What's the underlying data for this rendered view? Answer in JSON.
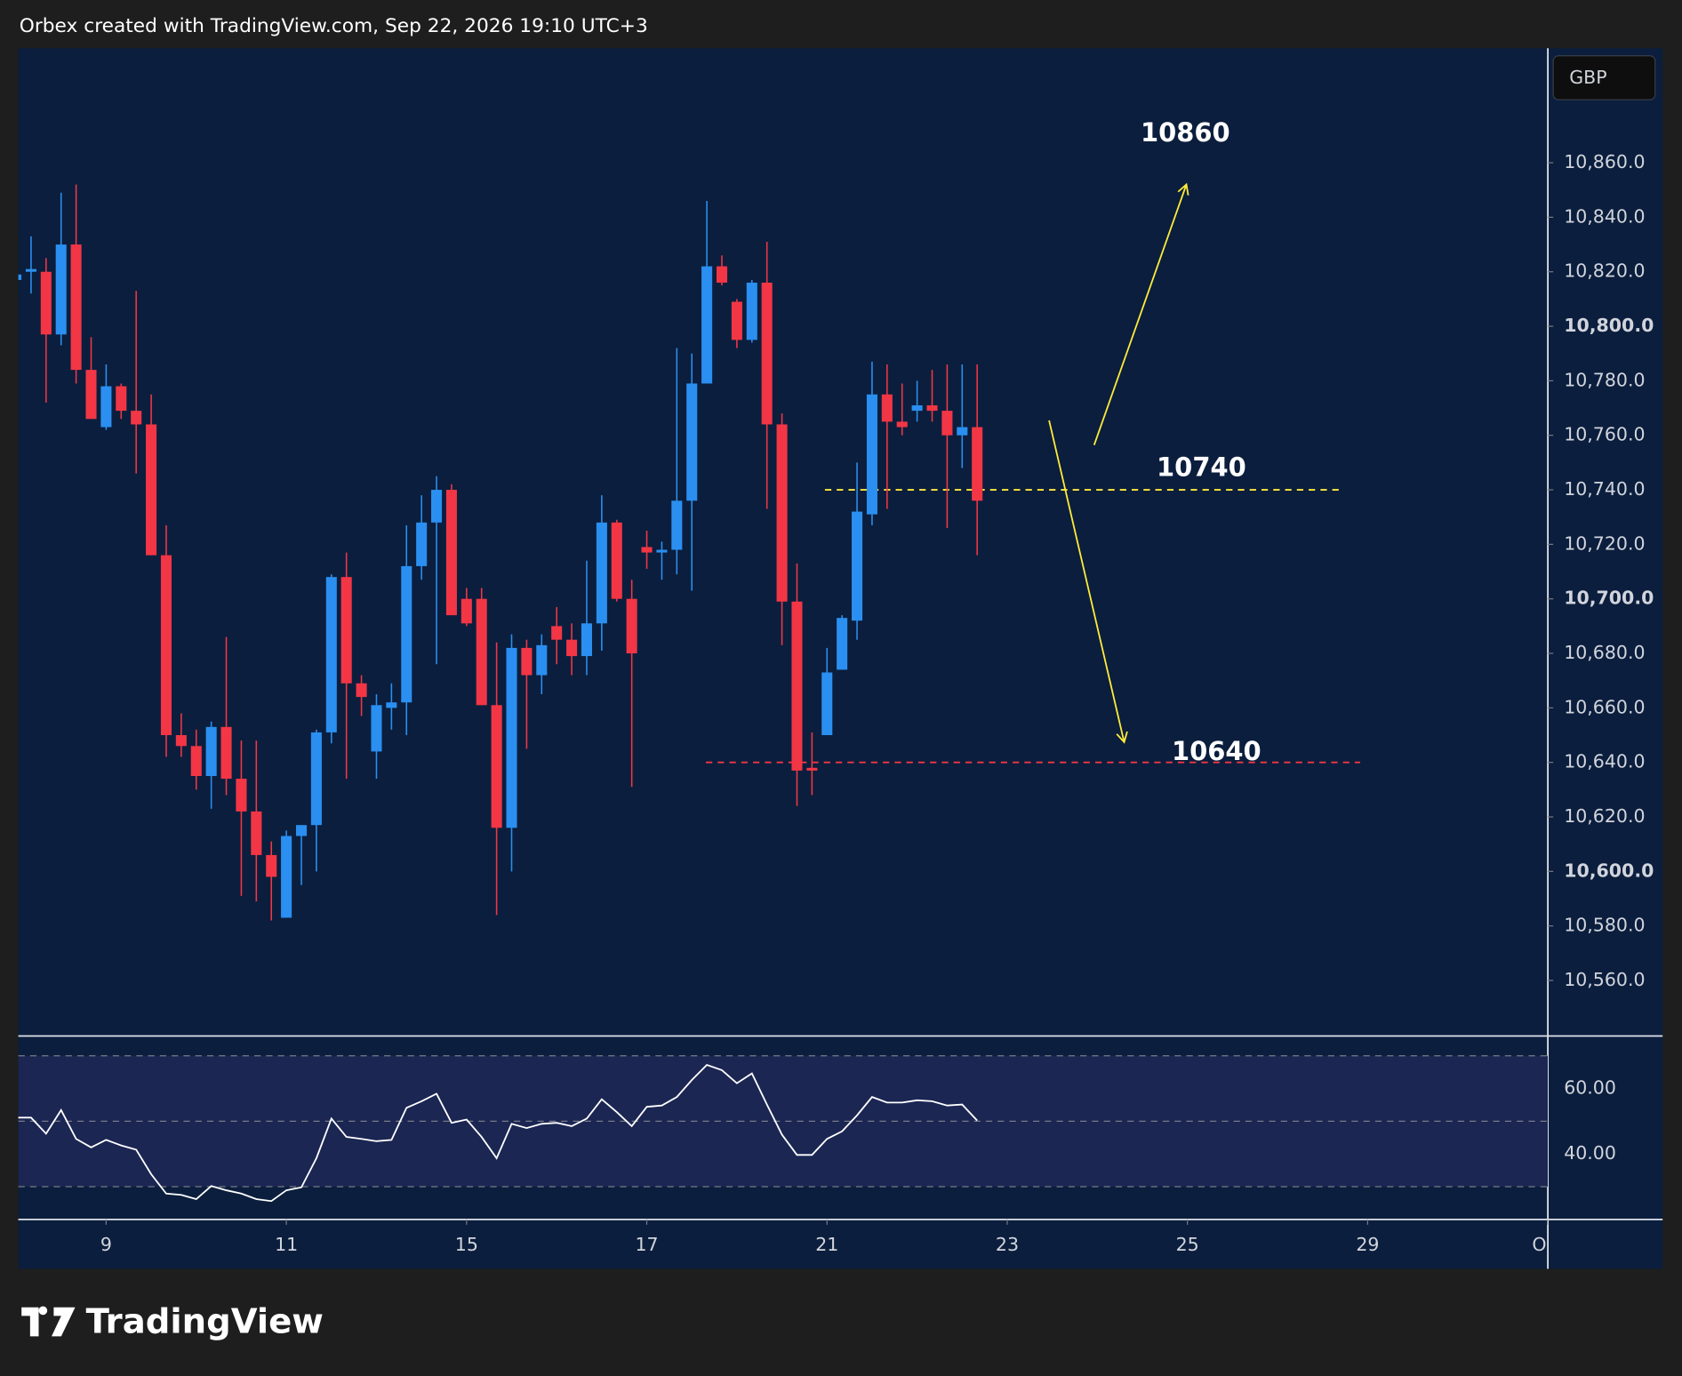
{
  "chart_data": {
    "type": "candlestick",
    "title": "Orbex created with TradingView.com, Sep 22, 2026 19:10 UTC+3",
    "currency": "GBP",
    "logo": "TradingView",
    "up_color": "#2a8ff0",
    "down_color": "#f23645",
    "open": [
      10817,
      10820,
      10820,
      10797,
      10830,
      10784,
      10763,
      10778,
      10769,
      10764,
      10716,
      10650,
      10646,
      10635,
      10653,
      10634,
      10622,
      10606,
      10583,
      10613,
      10617,
      10651,
      10708,
      10669,
      10644,
      10660,
      10662,
      10712,
      10728,
      10740,
      10700,
      10700,
      10661,
      10616,
      10682,
      10672,
      10690,
      10685,
      10679,
      10691,
      10728,
      10700,
      10719,
      10717,
      10718,
      10736,
      10779,
      10822,
      10809,
      10795,
      10816,
      10764,
      10699,
      10638,
      10650,
      10674,
      10692,
      10731,
      10775,
      10765,
      10769,
      10771,
      10769,
      10760,
      10763
    ],
    "high": [
      10820,
      10833,
      10825,
      10849,
      10852,
      10796,
      10786,
      10779,
      10813,
      10775,
      10727,
      10658,
      10652,
      10655,
      10686,
      10648,
      10648,
      10611,
      10615,
      10617,
      10652,
      10709,
      10717,
      10672,
      10665,
      10669,
      10727,
      10738,
      10745,
      10742,
      10704,
      10704,
      10684,
      10687,
      10685,
      10687,
      10697,
      10691,
      10714,
      10738,
      10729,
      10707,
      10725,
      10721,
      10792,
      10790,
      10846,
      10826,
      10810,
      10817,
      10831,
      10768,
      10713,
      10651,
      10682,
      10694,
      10750,
      10787,
      10786,
      10779,
      10780,
      10784,
      10786,
      10786,
      10786
    ],
    "low": [
      10816,
      10812,
      10772,
      10793,
      10779,
      10766,
      10762,
      10766,
      10746,
      10716,
      10642,
      10642,
      10630,
      10623,
      10628,
      10591,
      10589,
      10582,
      10583,
      10595,
      10600,
      10647,
      10634,
      10657,
      10634,
      10652,
      10650,
      10707,
      10676,
      10694,
      10690,
      10661,
      10584,
      10600,
      10645,
      10665,
      10676,
      10672,
      10672,
      10681,
      10699,
      10631,
      10711,
      10707,
      10709,
      10703,
      10779,
      10815,
      10792,
      10794,
      10733,
      10683,
      10624,
      10628,
      10650,
      10674,
      10685,
      10727,
      10733,
      10760,
      10765,
      10765,
      10726,
      10748,
      10716
    ],
    "close": [
      10819,
      10821,
      10797,
      10830,
      10784,
      10766,
      10778,
      10769,
      10764,
      10716,
      10650,
      10646,
      10635,
      10653,
      10634,
      10622,
      10606,
      10598,
      10613,
      10617,
      10651,
      10708,
      10669,
      10664,
      10661,
      10662,
      10712,
      10728,
      10740,
      10694,
      10691,
      10661,
      10616,
      10682,
      10672,
      10683,
      10685,
      10679,
      10691,
      10728,
      10700,
      10680,
      10717,
      10718,
      10736,
      10779,
      10822,
      10816,
      10795,
      10816,
      10764,
      10699,
      10637,
      10637,
      10673,
      10693,
      10732,
      10775,
      10765,
      10763,
      10771,
      10769,
      10760,
      10763,
      10736
    ],
    "xlim": [
      0.15,
      102
    ],
    "xticks": [
      {
        "value": 6,
        "label": "9"
      },
      {
        "value": 18,
        "label": "11"
      },
      {
        "value": 30,
        "label": "15"
      },
      {
        "value": 42,
        "label": "17"
      },
      {
        "value": 54,
        "label": "21"
      },
      {
        "value": 66,
        "label": "23"
      },
      {
        "value": 78,
        "label": "25"
      },
      {
        "value": 90,
        "label": "29"
      },
      {
        "value": 102,
        "label": "Oct"
      }
    ],
    "ylim": [
      10540,
      10902
    ],
    "yticks": [
      {
        "value": 10560,
        "label": "10,560.0"
      },
      {
        "value": 10580,
        "label": "10,580.0"
      },
      {
        "value": 10600,
        "label": "10,600.0"
      },
      {
        "value": 10620,
        "label": "10,620.0"
      },
      {
        "value": 10640,
        "label": "10,640.0"
      },
      {
        "value": 10660,
        "label": "10,660.0"
      },
      {
        "value": 10680,
        "label": "10,680.0"
      },
      {
        "value": 10700,
        "label": "10,700.0"
      },
      {
        "value": 10720,
        "label": "10,720.0"
      },
      {
        "value": 10740,
        "label": "10,740.0"
      },
      {
        "value": 10760,
        "label": "10,760.0"
      },
      {
        "value": 10780,
        "label": "10,780.0"
      },
      {
        "value": 10800,
        "label": "10,800.0"
      },
      {
        "value": 10820,
        "label": "10,820.0"
      },
      {
        "value": 10840,
        "label": "10,840.0"
      },
      {
        "value": 10860,
        "label": "10,860.0"
      }
    ],
    "annotations": [
      {
        "value": 10860,
        "color": "#ffffff"
      },
      {
        "value": 10740,
        "color": "#ffeb3b"
      },
      {
        "value": 10640,
        "color": "#f23645"
      }
    ],
    "rsi": {
      "color": "#ffffff",
      "values": [
        51.1,
        51.1,
        46.2,
        53.4,
        44.6,
        42,
        44.3,
        42.6,
        41.3,
        33.8,
        27.9,
        27.5,
        26.2,
        30.2,
        28.9,
        27.9,
        26.2,
        25.6,
        28.9,
        29.8,
        38.7,
        50.8,
        45.2,
        44.6,
        43.9,
        44.3,
        54.1,
        56.1,
        58.4,
        49.5,
        50.5,
        45.2,
        38.7,
        49.2,
        47.9,
        49.2,
        49.5,
        48.5,
        50.8,
        56.7,
        52.8,
        48.5,
        54.4,
        54.8,
        57.4,
        62.6,
        67.2,
        65.6,
        61.6,
        64.6,
        55.1,
        45.9,
        39.7,
        39.7,
        44.6,
        46.9,
        51.8,
        57.4,
        55.7,
        55.7,
        56.4,
        56.1,
        54.8,
        55.1,
        50.2
      ],
      "y2lim": [
        20,
        75.7
      ],
      "y2ticks": [
        {
          "value": 60,
          "label": "60.00"
        },
        {
          "value": 40,
          "label": "40.00"
        }
      ],
      "levels": [
        70,
        50,
        30
      ]
    }
  }
}
